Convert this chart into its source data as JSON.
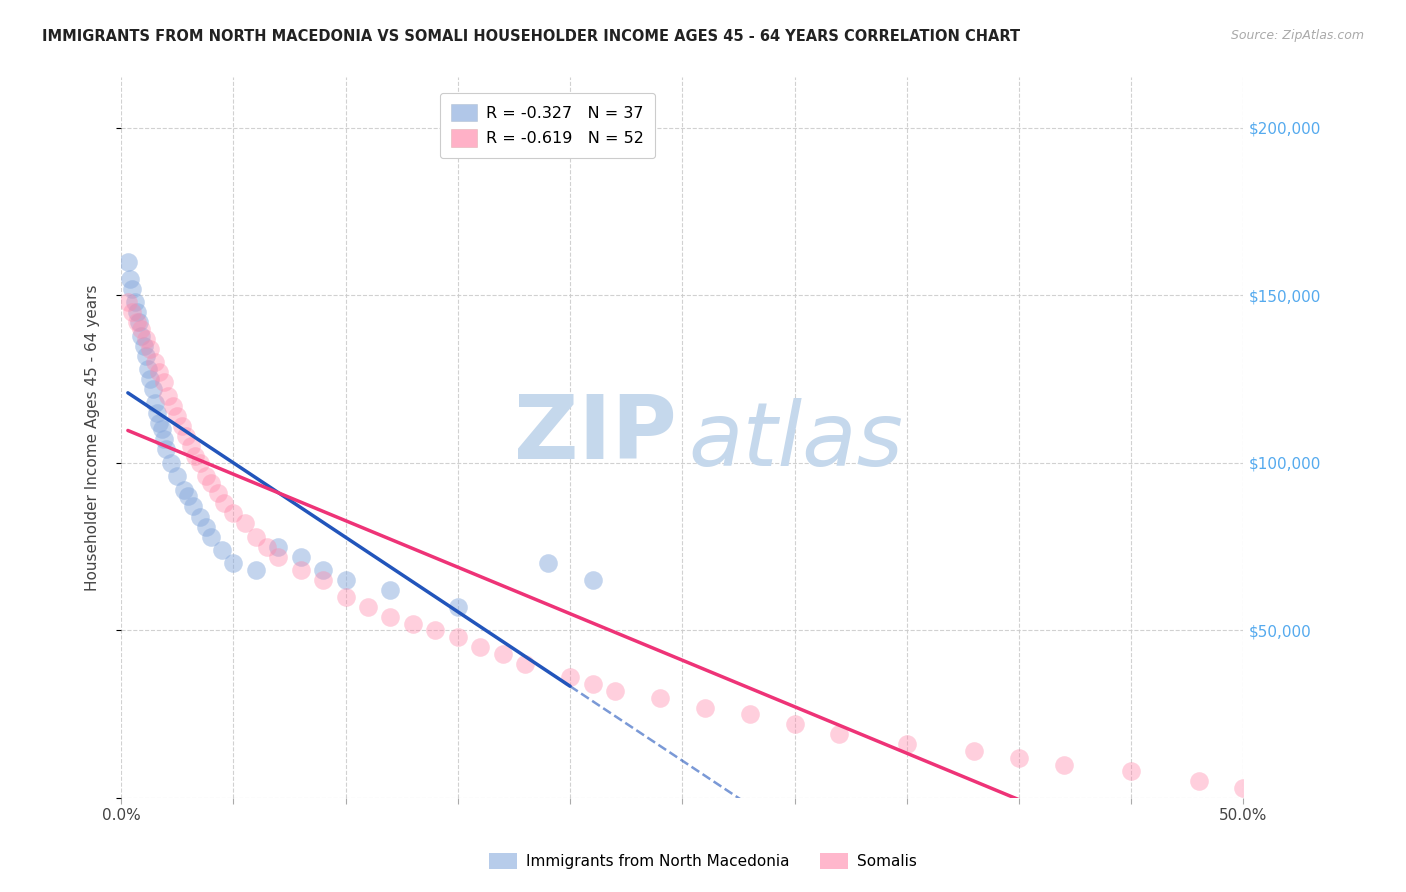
{
  "title": "IMMIGRANTS FROM NORTH MACEDONIA VS SOMALI HOUSEHOLDER INCOME AGES 45 - 64 YEARS CORRELATION CHART",
  "source": "Source: ZipAtlas.com",
  "ylabel": "Householder Income Ages 45 - 64 years",
  "xlim": [
    0.0,
    0.5
  ],
  "ylim": [
    0,
    215000
  ],
  "yticks": [
    0,
    50000,
    100000,
    150000,
    200000
  ],
  "ytick_labels": [
    "",
    "$50,000",
    "$100,000",
    "$150,000",
    "$200,000"
  ],
  "xticks": [
    0.0,
    0.05,
    0.1,
    0.15,
    0.2,
    0.25,
    0.3,
    0.35,
    0.4,
    0.45,
    0.5
  ],
  "blue_color": "#88AADD",
  "pink_color": "#FF88AA",
  "blue_line_color": "#2255BB",
  "pink_line_color": "#EE3377",
  "blue_line_solid_end": 0.2,
  "watermark_zip_color": "#C5D8EC",
  "watermark_atlas_color": "#C5D8EC",
  "legend1_text": "R = -0.327   N = 37",
  "legend2_text": "R = -0.619   N = 52",
  "bottom_legend1": "Immigrants from North Macedonia",
  "bottom_legend2": "Somalis",
  "blue_x": [
    0.003,
    0.004,
    0.005,
    0.006,
    0.007,
    0.008,
    0.009,
    0.01,
    0.011,
    0.012,
    0.013,
    0.014,
    0.015,
    0.016,
    0.017,
    0.018,
    0.019,
    0.02,
    0.022,
    0.025,
    0.028,
    0.03,
    0.032,
    0.035,
    0.038,
    0.04,
    0.045,
    0.05,
    0.06,
    0.07,
    0.08,
    0.09,
    0.1,
    0.12,
    0.15,
    0.19,
    0.21
  ],
  "blue_y": [
    160000,
    155000,
    152000,
    148000,
    145000,
    142000,
    138000,
    135000,
    132000,
    128000,
    125000,
    122000,
    118000,
    115000,
    112000,
    110000,
    107000,
    104000,
    100000,
    96000,
    92000,
    90000,
    87000,
    84000,
    81000,
    78000,
    74000,
    70000,
    68000,
    75000,
    72000,
    68000,
    65000,
    62000,
    57000,
    70000,
    65000
  ],
  "pink_x": [
    0.003,
    0.005,
    0.007,
    0.009,
    0.011,
    0.013,
    0.015,
    0.017,
    0.019,
    0.021,
    0.023,
    0.025,
    0.027,
    0.029,
    0.031,
    0.033,
    0.035,
    0.038,
    0.04,
    0.043,
    0.046,
    0.05,
    0.055,
    0.06,
    0.065,
    0.07,
    0.08,
    0.09,
    0.1,
    0.11,
    0.12,
    0.13,
    0.14,
    0.15,
    0.16,
    0.17,
    0.18,
    0.2,
    0.21,
    0.22,
    0.24,
    0.26,
    0.28,
    0.3,
    0.32,
    0.35,
    0.38,
    0.4,
    0.42,
    0.45,
    0.48,
    0.5
  ],
  "pink_y": [
    148000,
    145000,
    142000,
    140000,
    137000,
    134000,
    130000,
    127000,
    124000,
    120000,
    117000,
    114000,
    111000,
    108000,
    105000,
    102000,
    100000,
    96000,
    94000,
    91000,
    88000,
    85000,
    82000,
    78000,
    75000,
    72000,
    68000,
    65000,
    60000,
    57000,
    54000,
    52000,
    50000,
    48000,
    45000,
    43000,
    40000,
    36000,
    34000,
    32000,
    30000,
    27000,
    25000,
    22000,
    19000,
    16000,
    14000,
    12000,
    10000,
    8000,
    5000,
    3000
  ]
}
